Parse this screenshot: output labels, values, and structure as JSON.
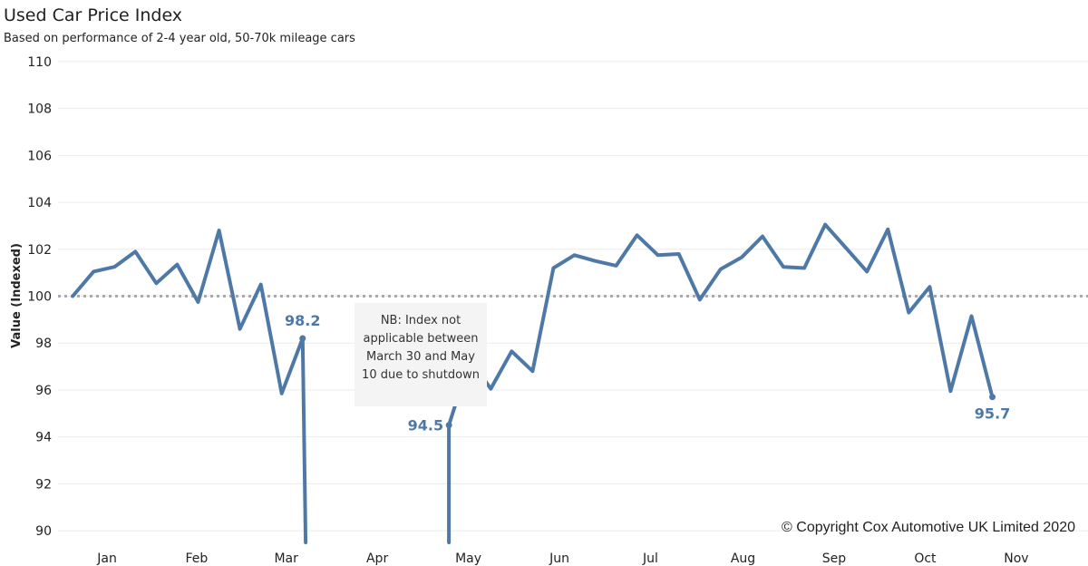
{
  "chart_data": {
    "type": "line",
    "title": "Used Car Price Index",
    "subtitle": "Based on performance of 2-4 year old, 50-70k mileage cars",
    "ylabel": "Value (Indexed)",
    "xlabel": "",
    "ylim": [
      89.5,
      110.5
    ],
    "yticks": [
      90,
      92,
      94,
      96,
      98,
      100,
      102,
      104,
      106,
      108,
      110
    ],
    "months": [
      "Jan",
      "Feb",
      "Mar",
      "Apr",
      "May",
      "Jun",
      "Jul",
      "Aug",
      "Sep",
      "Oct",
      "Nov"
    ],
    "reference_line": {
      "value": 100,
      "style": "dotted",
      "color": "#a9aab0"
    },
    "grid": "horizontal",
    "line_color": "#4e79a7",
    "series": [
      {
        "segments": [
          [
            [
              "2020-01-05",
              100.0
            ],
            [
              "2020-01-12",
              101.05
            ],
            [
              "2020-01-19",
              101.25
            ],
            [
              "2020-01-26",
              101.9
            ],
            [
              "2020-02-02",
              100.55
            ],
            [
              "2020-02-09",
              101.35
            ],
            [
              "2020-02-16",
              99.75
            ],
            [
              "2020-02-23",
              102.8
            ],
            [
              "2020-03-01",
              98.6
            ],
            [
              "2020-03-08",
              100.5
            ],
            [
              "2020-03-15",
              95.85
            ],
            [
              "2020-03-22",
              98.2
            ],
            [
              "2020-03-23",
              89.5
            ]
          ],
          [
            [
              "2020-05-10",
              89.5
            ],
            [
              "2020-05-10",
              94.5
            ],
            [
              "2020-05-17",
              97.3
            ],
            [
              "2020-05-24",
              96.05
            ],
            [
              "2020-05-31",
              97.65
            ],
            [
              "2020-06-07",
              96.8
            ],
            [
              "2020-06-14",
              101.2
            ],
            [
              "2020-06-21",
              101.75
            ],
            [
              "2020-06-28",
              101.5
            ],
            [
              "2020-07-05",
              101.3
            ],
            [
              "2020-07-12",
              102.6
            ],
            [
              "2020-07-19",
              101.75
            ],
            [
              "2020-07-26",
              101.8
            ],
            [
              "2020-08-02",
              99.85
            ],
            [
              "2020-08-09",
              101.15
            ],
            [
              "2020-08-16",
              101.65
            ],
            [
              "2020-08-23",
              102.55
            ],
            [
              "2020-08-30",
              101.25
            ],
            [
              "2020-09-06",
              101.2
            ],
            [
              "2020-09-13",
              103.05
            ],
            [
              "2020-09-20",
              102.05
            ],
            [
              "2020-09-27",
              101.05
            ],
            [
              "2020-10-04",
              102.85
            ],
            [
              "2020-10-11",
              99.3
            ],
            [
              "2020-10-18",
              100.4
            ],
            [
              "2020-10-25",
              95.95
            ],
            [
              "2020-11-01",
              99.15
            ],
            [
              "2020-11-08",
              95.7
            ]
          ]
        ]
      }
    ],
    "data_labels": [
      {
        "text": "98.2",
        "x": "2020-03-22",
        "y": 98.2,
        "position": "above"
      },
      {
        "text": "94.5",
        "x": "2020-05-10",
        "y": 94.5,
        "position": "left"
      },
      {
        "text": "95.7",
        "x": "2020-11-08",
        "y": 95.7,
        "position": "below"
      }
    ],
    "annotation": "NB: Index not applicable between March 30 and May 10 due to shutdown",
    "copyright": "© Copyright Cox Automotive UK Limited 2020"
  }
}
